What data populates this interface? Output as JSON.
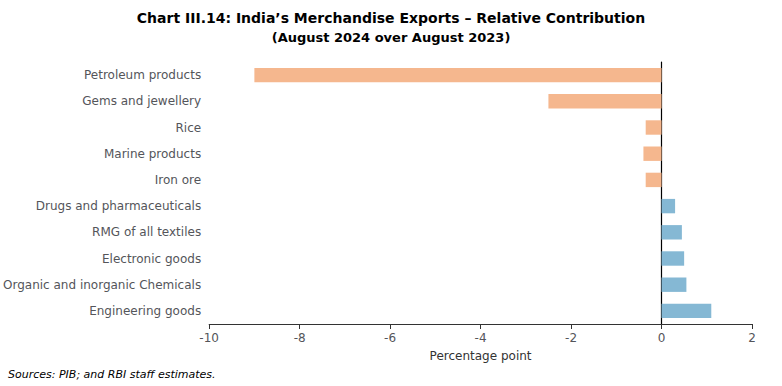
{
  "chart_data": {
    "type": "bar",
    "orientation": "horizontal",
    "title": "Chart III.14: India’s Merchandise Exports – Relative Contribution",
    "subtitle": "(August 2024 over August 2023)",
    "categories": [
      "Engineering goods",
      "Organic and inorganic Chemicals",
      "Electronic goods",
      "RMG of all textiles",
      "Drugs and pharmaceuticals",
      "Iron ore",
      "Marine products",
      "Rice",
      "Gems and jewellery",
      "Petroleum products"
    ],
    "values": [
      1.1,
      0.55,
      0.5,
      0.45,
      0.3,
      -0.35,
      -0.4,
      -0.35,
      -2.5,
      -9.0
    ],
    "colors": [
      "#85b8d4",
      "#85b8d4",
      "#85b8d4",
      "#85b8d4",
      "#85b8d4",
      "#f5b78e",
      "#f5b78e",
      "#f5b78e",
      "#f5b78e",
      "#f5b78e"
    ],
    "xlabel": "Percentage point",
    "xlim": [
      -10,
      2
    ],
    "xticks": [
      -10,
      -8,
      -6,
      -4,
      -2,
      0,
      2
    ],
    "grid": false,
    "annotations": [
      "Sources: PIB; and RBI staff estimates."
    ]
  }
}
